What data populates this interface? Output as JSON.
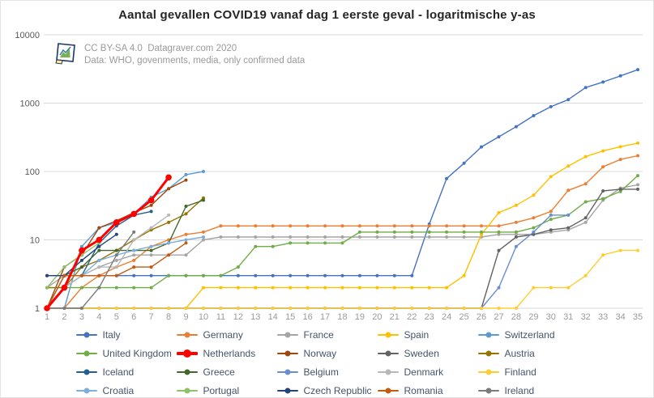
{
  "title": "Aantal gevallen COVID19 vanaf dag 1 eerste geval - logaritmische y-as",
  "attribution": {
    "logo_icon": "datagraver-logo",
    "license_line": "CC BY-SA 4.0  Datagraver.com 2020",
    "source_line": "Data: WHO, govenments, media, only confirmed data"
  },
  "chart_data": {
    "type": "line",
    "title": "Aantal gevallen COVID19 vanaf dag 1 eerste geval - logaritmische y-as",
    "xlabel": "",
    "ylabel": "",
    "y_scale": "log10",
    "ylim": [
      1,
      10000
    ],
    "y_ticks": [
      1,
      10,
      100,
      1000,
      10000
    ],
    "x_ticks": [
      1,
      2,
      3,
      4,
      5,
      6,
      7,
      8,
      9,
      10,
      11,
      12,
      13,
      14,
      15,
      16,
      17,
      18,
      19,
      20,
      21,
      22,
      23,
      24,
      25,
      26,
      27,
      28,
      29,
      30,
      31,
      32,
      33,
      34,
      35
    ],
    "grid": "horizontal",
    "grid_color": "#D9D9D9",
    "axis_label_color": "#595959",
    "x_label_color": "#9B9B9B",
    "legend_text_color": "#44546A",
    "legend_position": "bottom",
    "legend_columns": 5,
    "series": [
      {
        "name": "Italy",
        "color": "#4472C4",
        "values": [
          3,
          3,
          3,
          3,
          3,
          3,
          3,
          3,
          3,
          3,
          3,
          3,
          3,
          3,
          3,
          3,
          3,
          3,
          3,
          3,
          3,
          3,
          17,
          79,
          132,
          229,
          322,
          453,
          655,
          888,
          1128,
          1694,
          2036,
          2502,
          3089
        ]
      },
      {
        "name": "Germany",
        "color": "#ED7D31",
        "values": [
          1,
          1,
          2,
          3,
          4,
          5,
          8,
          10,
          12,
          13,
          16,
          16,
          16,
          16,
          16,
          16,
          16,
          16,
          16,
          16,
          16,
          16,
          16,
          16,
          16,
          16,
          16,
          18,
          21,
          26,
          53,
          66,
          117,
          150,
          170
        ]
      },
      {
        "name": "France",
        "color": "#A5A5A5",
        "values": [
          2,
          3,
          3,
          4,
          5,
          6,
          6,
          6,
          6,
          10,
          11,
          11,
          11,
          11,
          11,
          11,
          11,
          11,
          11,
          11,
          11,
          11,
          11,
          11,
          11,
          11,
          12,
          12,
          12,
          13,
          14,
          18,
          38,
          57,
          64
        ]
      },
      {
        "name": "Spain",
        "color": "#FFC000",
        "values": [
          1,
          1,
          1,
          1,
          1,
          1,
          1,
          1,
          1,
          2,
          2,
          2,
          2,
          2,
          2,
          2,
          2,
          2,
          2,
          2,
          2,
          2,
          2,
          2,
          3,
          12,
          25,
          32,
          45,
          84,
          120,
          165,
          200,
          230,
          260
        ]
      },
      {
        "name": "Switzerland",
        "color": "#5B9BD5",
        "values": [
          1,
          1,
          8,
          15,
          18,
          24,
          42,
          56,
          90,
          100
        ]
      },
      {
        "name": "United Kingdom",
        "color": "#70AD47",
        "values": [
          2,
          2,
          2,
          2,
          2,
          2,
          2,
          3,
          3,
          3,
          3,
          4,
          8,
          8,
          9,
          9,
          9,
          9,
          13,
          13,
          13,
          13,
          13,
          13,
          13,
          13,
          13,
          13,
          15,
          20,
          23,
          36,
          40,
          51,
          87
        ]
      },
      {
        "name": "Netherlands",
        "color": "#FF0000",
        "thick": true,
        "values": [
          1,
          2,
          7,
          10,
          18,
          24,
          38,
          82
        ]
      },
      {
        "name": "Norway",
        "color": "#9E480E",
        "values": [
          1,
          4,
          6,
          15,
          19,
          25,
          32,
          56,
          75
        ]
      },
      {
        "name": "Sweden",
        "color": "#636363",
        "values": [
          1,
          1,
          1,
          1,
          1,
          1,
          1,
          1,
          1,
          1,
          1,
          1,
          1,
          1,
          1,
          1,
          1,
          1,
          1,
          1,
          1,
          1,
          1,
          1,
          1,
          1,
          7,
          11,
          12,
          14,
          15,
          21,
          52,
          55,
          55
        ]
      },
      {
        "name": "Austria",
        "color": "#997300",
        "values": [
          2,
          2,
          4,
          5,
          7,
          10,
          14,
          18,
          24,
          41
        ]
      },
      {
        "name": "Iceland",
        "color": "#255E91",
        "values": [
          1,
          2,
          3,
          9,
          16,
          23,
          26
        ]
      },
      {
        "name": "Greece",
        "color": "#43682B",
        "values": [
          1,
          3,
          4,
          7,
          7,
          7,
          7,
          9,
          31,
          38
        ]
      },
      {
        "name": "Belgium",
        "color": "#698ED0",
        "values": [
          1,
          1,
          1,
          1,
          1,
          1,
          1,
          1,
          1,
          1,
          1,
          1,
          1,
          1,
          1,
          1,
          1,
          1,
          1,
          1,
          1,
          1,
          1,
          1,
          1,
          1,
          2,
          8,
          13,
          23,
          23
        ]
      },
      {
        "name": "Denmark",
        "color": "#B7B7B7",
        "values": [
          1,
          2,
          3,
          4,
          4,
          10,
          15,
          23
        ]
      },
      {
        "name": "Finland",
        "color": "#FFCD33",
        "values": [
          1,
          1,
          1,
          1,
          1,
          1,
          1,
          1,
          1,
          1,
          1,
          1,
          1,
          1,
          1,
          1,
          1,
          1,
          1,
          1,
          1,
          1,
          1,
          1,
          1,
          1,
          1,
          1,
          2,
          2,
          2,
          3,
          6,
          7,
          7
        ]
      },
      {
        "name": "Croatia",
        "color": "#7CAFDD",
        "values": [
          1,
          3,
          3,
          5,
          6,
          7,
          8,
          9,
          10,
          11
        ]
      },
      {
        "name": "Portugal",
        "color": "#8CC168",
        "values": [
          2,
          4,
          6,
          9
        ]
      },
      {
        "name": "Czech Republic",
        "color": "#264478",
        "values": [
          3,
          3,
          5,
          8,
          12
        ]
      },
      {
        "name": "Romania",
        "color": "#C55A11",
        "values": [
          1,
          3,
          3,
          3,
          3,
          4,
          4,
          6,
          9
        ]
      },
      {
        "name": "Ireland",
        "color": "#7B7B7B",
        "values": [
          1,
          1,
          1,
          2,
          6,
          13
        ]
      }
    ]
  }
}
